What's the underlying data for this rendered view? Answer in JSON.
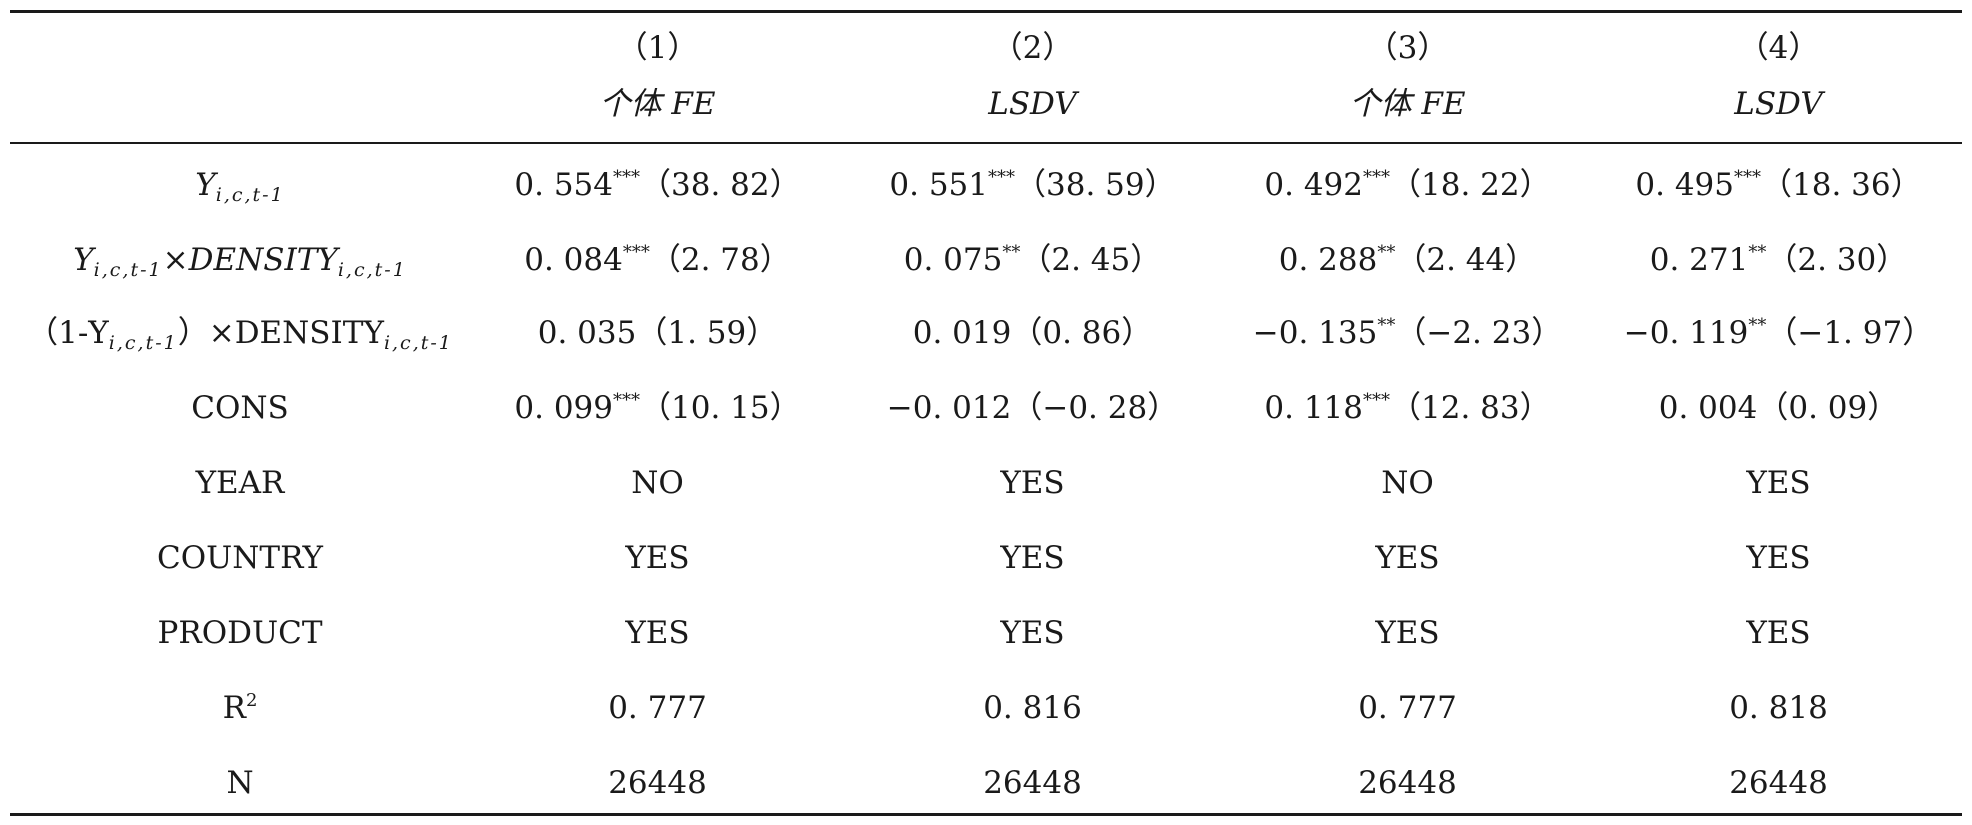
{
  "columns": [
    {
      "number": "（1）",
      "method": "个体 FE"
    },
    {
      "number": "（2）",
      "method": "LSDV"
    },
    {
      "number": "（3）",
      "method": "个体 FE"
    },
    {
      "number": "（4）",
      "method": "LSDV"
    }
  ],
  "row_labels": {
    "lag_y": {
      "main": "Y",
      "sub": "i,c,t-1"
    },
    "interaction": {
      "y": "Y",
      "sub1": "i,c,t-1",
      "times": "×DENSITY",
      "sub2": "i,c,t-1"
    },
    "inverse_interaction": {
      "open": "（1-Y",
      "sub1": "i,c,t-1",
      "close_times": "）×DENSITY",
      "sub2": "i,c,t-1"
    },
    "cons": "CONS",
    "year": "YEAR",
    "country": "COUNTRY",
    "product": "PRODUCT",
    "r2": {
      "main": "R",
      "sup": "2"
    },
    "n": "N"
  },
  "coefficients": {
    "lag_y": [
      {
        "coef": "0. 554",
        "stars": "***",
        "t": "（38. 82）"
      },
      {
        "coef": "0. 551",
        "stars": "***",
        "t": "（38. 59）"
      },
      {
        "coef": "0. 492",
        "stars": "***",
        "t": "（18. 22）"
      },
      {
        "coef": "0. 495",
        "stars": "***",
        "t": "（18. 36）"
      }
    ],
    "interaction": [
      {
        "coef": "0. 084",
        "stars": "***",
        "t": "（2. 78）"
      },
      {
        "coef": "0. 075",
        "stars": "**",
        "t": "（2. 45）"
      },
      {
        "coef": "0. 288",
        "stars": "**",
        "t": "（2. 44）"
      },
      {
        "coef": "0. 271",
        "stars": "**",
        "t": "（2. 30）"
      }
    ],
    "inverse_interaction": [
      {
        "coef": "0. 035",
        "stars": "",
        "t": "（1. 59）"
      },
      {
        "coef": "0. 019",
        "stars": "",
        "t": "（0. 86）"
      },
      {
        "coef": "−0. 135",
        "stars": "**",
        "t": "（−2. 23）"
      },
      {
        "coef": "−0. 119",
        "stars": "**",
        "t": "（−1. 97）"
      }
    ],
    "cons": [
      {
        "coef": "0. 099",
        "stars": "***",
        "t": "（10. 15）"
      },
      {
        "coef": "−0. 012",
        "stars": "",
        "t": "（−0. 28）"
      },
      {
        "coef": "0. 118",
        "stars": "***",
        "t": "（12. 83）"
      },
      {
        "coef": "0. 004",
        "stars": "",
        "t": "（0. 09）"
      }
    ]
  },
  "controls": {
    "year": [
      "NO",
      "YES",
      "NO",
      "YES"
    ],
    "country": [
      "YES",
      "YES",
      "YES",
      "YES"
    ],
    "product": [
      "YES",
      "YES",
      "YES",
      "YES"
    ]
  },
  "stats": {
    "r2": [
      "0. 777",
      "0. 816",
      "0. 777",
      "0. 818"
    ],
    "n": [
      "26448",
      "26448",
      "26448",
      "26448"
    ]
  }
}
